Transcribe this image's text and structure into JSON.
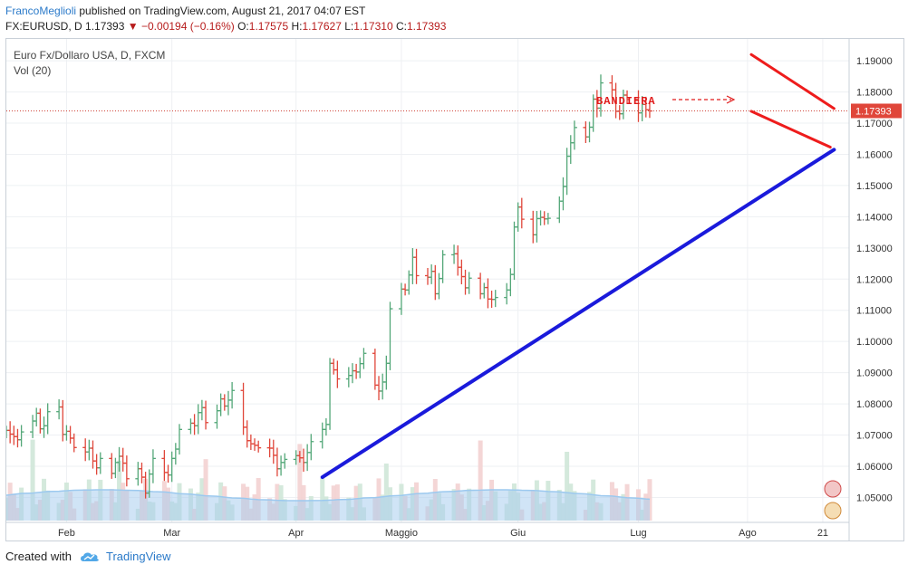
{
  "header": {
    "author": "FrancoMeglioli",
    "published_text": "published on TradingView.com, August 21, 2017 04:07 EST",
    "symbol": "FX:EURUSD, D",
    "last": "1.17393",
    "change": "−0.00194 (−0.16%)",
    "o_label": "O:",
    "o_value": "1.17575",
    "h_label": "H:",
    "h_value": "1.17627",
    "l_label": "L:",
    "l_value": "1.17310",
    "c_label": "C:",
    "c_value": "1.17393"
  },
  "footer": {
    "created_with": "Created with",
    "brand": "TradingView"
  },
  "chart_data": {
    "type": "ohlc",
    "title": "Euro Fx/Dollaro USA, D, FXCM",
    "subtitle": "Vol (20)",
    "annotation": "BANDIERA",
    "last_price_label": "1.17393",
    "last_price": 1.17393,
    "ylim": [
      1.042,
      1.197
    ],
    "y_ticks": [
      1.05,
      1.06,
      1.07,
      1.08,
      1.09,
      1.1,
      1.11,
      1.12,
      1.13,
      1.14,
      1.15,
      1.16,
      1.17,
      1.18,
      1.19
    ],
    "y_tick_labels": [
      "1.05000",
      "1.06000",
      "1.07000",
      "1.08000",
      "1.09000",
      "1.10000",
      "1.11000",
      "1.12000",
      "1.13000",
      "1.14000",
      "1.15000",
      "1.16000",
      "1.17000",
      "1.18000",
      "1.19000"
    ],
    "x_tick_labels": [
      "Feb",
      "Mar",
      "Apr",
      "Maggio",
      "Giu",
      "Lug",
      "Ago",
      "21"
    ],
    "x_tick_dates": [
      "2017-02-01",
      "2017-03-01",
      "2017-04-03",
      "2017-05-01",
      "2017-06-01",
      "2017-07-03",
      "2017-08-01",
      "2017-08-21"
    ],
    "x_range": [
      "2017-01-16",
      "2017-08-28"
    ],
    "closes": [
      1.0715,
      1.0703,
      1.0695,
      1.0685,
      1.071,
      1.0745,
      1.077,
      1.072,
      1.073,
      1.0775,
      1.079,
      1.0702,
      1.0712,
      1.069,
      1.066,
      1.0646,
      1.0658,
      1.0617,
      1.0595,
      1.0625,
      1.0577,
      1.0612,
      1.0632,
      1.061,
      1.056,
      1.0592,
      1.0565,
      1.0514,
      1.0575,
      1.0625,
      1.058,
      1.0572,
      1.0625,
      1.0655,
      1.0718,
      1.0738,
      1.073,
      1.0772,
      1.0788,
      1.074,
      1.0778,
      1.0816,
      1.0793,
      1.0812,
      1.0843,
      1.0725,
      1.0682,
      1.0672,
      1.0667,
      1.0659,
      1.0658,
      1.0635,
      1.0592,
      1.0612,
      1.0622,
      1.0634,
      1.0627,
      1.0612,
      1.0644,
      1.0679,
      1.0718,
      1.0734,
      1.093,
      1.0909,
      1.088,
      1.0891,
      1.0906,
      1.0902,
      1.0929,
      1.0962,
      1.086,
      1.0841,
      1.087,
      1.093,
      1.1105,
      1.1168,
      1.1165,
      1.1213,
      1.127,
      1.1211,
      1.1206,
      1.1225,
      1.1153,
      1.1202,
      1.1278,
      1.1281,
      1.1238,
      1.1208,
      1.1172,
      1.1203,
      1.1153,
      1.1173,
      1.1136,
      1.1135,
      1.1141,
      1.1165,
      1.1215,
      1.1367,
      1.1431,
      1.1392,
      1.1342,
      1.1394,
      1.1398,
      1.1393,
      1.1395,
      1.145,
      1.1497,
      1.1594,
      1.1637,
      1.1686,
      1.1656,
      1.1687,
      1.1777,
      1.1748,
      1.1829,
      1.1807,
      1.1738,
      1.173,
      1.179,
      1.1776,
      1.1733,
      1.176,
      1.1743,
      1.1739
    ],
    "trendline": {
      "from": {
        "date": "2017-04-10",
        "price": 1.0565
      },
      "to": {
        "date": "2017-08-24",
        "price": 1.1615
      },
      "color": "#1a1adb"
    },
    "flag_upper": {
      "from": {
        "date": "2017-08-02",
        "price": 1.192
      },
      "to": {
        "date": "2017-08-24",
        "price": 1.1747
      },
      "color": "#ee1c1c"
    },
    "flag_lower": {
      "from": {
        "date": "2017-08-02",
        "price": 1.1738
      },
      "to": {
        "date": "2017-08-23",
        "price": 1.1623
      },
      "color": "#ee1c1c"
    },
    "colors": {
      "up": "#26a69a",
      "up_bar": "#53a778",
      "down": "#e0463a",
      "volume_ma": "#9cc9ef",
      "volume_fill": "#a9cdee"
    }
  }
}
